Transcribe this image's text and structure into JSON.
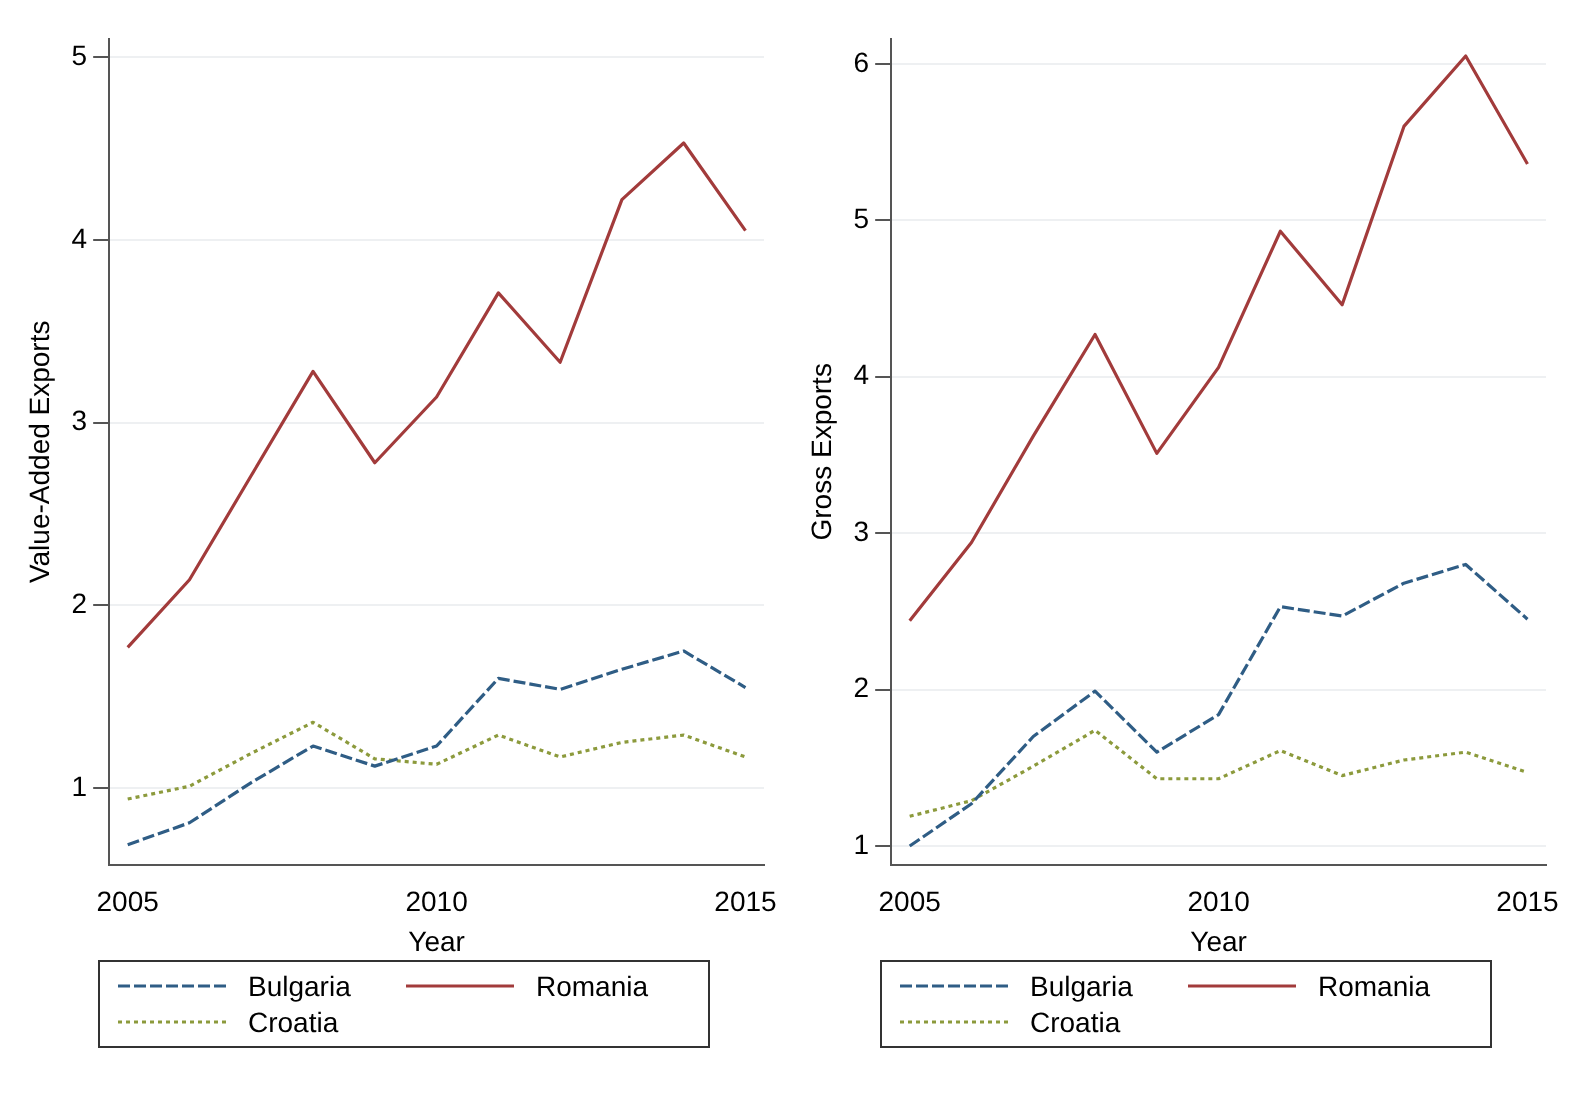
{
  "chart_data": [
    {
      "type": "line",
      "xlabel": "Year",
      "ylabel": "Value-Added Exports",
      "x": [
        2005,
        2006,
        2007,
        2008,
        2009,
        2010,
        2011,
        2012,
        2013,
        2014,
        2015
      ],
      "xlim": [
        2004.7,
        2015.3
      ],
      "xticks": [
        2005,
        2010,
        2015
      ],
      "ylim": [
        0.58,
        5.1
      ],
      "yticks": [
        1,
        2,
        3,
        4,
        5
      ],
      "grid": "y",
      "legend": "bottom",
      "marker": "none",
      "series": [
        {
          "name": "Bulgaria",
          "color": "#2f5d85",
          "line_style": "dashed",
          "values": [
            0.69,
            0.81,
            1.03,
            1.23,
            1.12,
            1.23,
            1.6,
            1.54,
            1.65,
            1.75,
            1.55
          ]
        },
        {
          "name": "Romania",
          "color": "#a23b3b",
          "line_style": "solid",
          "values": [
            1.77,
            2.14,
            2.71,
            3.28,
            2.78,
            3.14,
            3.71,
            3.33,
            4.22,
            4.53,
            4.05
          ]
        },
        {
          "name": "Croatia",
          "color": "#8c9a3c",
          "line_style": "dotted",
          "values": [
            0.94,
            1.01,
            1.19,
            1.36,
            1.16,
            1.13,
            1.29,
            1.17,
            1.25,
            1.29,
            1.17
          ]
        }
      ]
    },
    {
      "type": "line",
      "xlabel": "Year",
      "ylabel": "Gross Exports",
      "x": [
        2005,
        2006,
        2007,
        2008,
        2009,
        2010,
        2011,
        2012,
        2013,
        2014,
        2015
      ],
      "xlim": [
        2004.7,
        2015.3
      ],
      "xticks": [
        2005,
        2010,
        2015
      ],
      "ylim": [
        0.88,
        6.16
      ],
      "yticks": [
        1,
        2,
        3,
        4,
        5,
        6
      ],
      "grid": "y",
      "legend": "bottom",
      "marker": "none",
      "series": [
        {
          "name": "Bulgaria",
          "color": "#2f5d85",
          "line_style": "dashed",
          "values": [
            1.0,
            1.27,
            1.7,
            1.99,
            1.6,
            1.84,
            2.53,
            2.47,
            2.68,
            2.8,
            2.45
          ]
        },
        {
          "name": "Romania",
          "color": "#a23b3b",
          "line_style": "solid",
          "values": [
            2.44,
            2.94,
            3.62,
            4.27,
            3.51,
            4.06,
            4.93,
            4.46,
            5.6,
            6.05,
            5.36
          ]
        },
        {
          "name": "Croatia",
          "color": "#8c9a3c",
          "line_style": "dotted",
          "values": [
            1.19,
            1.29,
            1.51,
            1.74,
            1.43,
            1.43,
            1.61,
            1.45,
            1.55,
            1.6,
            1.47
          ]
        }
      ]
    }
  ]
}
